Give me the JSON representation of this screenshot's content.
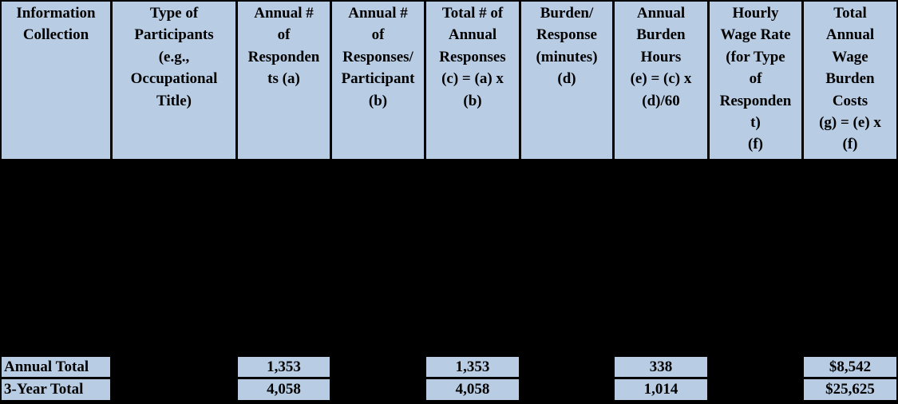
{
  "table": {
    "title_semantic": "Estimated Annualized Burden Table",
    "headers": [
      "Information\nCollection",
      "Type of\nParticipants\n(e.g.,\nOccupational\nTitle)",
      "Annual #\nof\nResponden\nts (a)",
      "Annual #\nof\nResponses/\nParticipant\n(b)",
      "Total # of\nAnnual\nResponses\n(c) = (a) x\n(b)",
      "Burden/\nResponse\n(minutes)\n(d)",
      "Annual\nBurden\nHours\n(e) = (c) x\n(d)/60",
      "Hourly\nWage Rate\n(for Type\nof\nResponden\nt)\n(f)",
      "Total\nAnnual\nWage\nBurden\nCosts\n(g) = (e) x\n(f)"
    ],
    "rows": [
      {
        "label": "Annual Total",
        "annual_respondents": "1,353",
        "total_annual_responses": "1,353",
        "annual_burden_hours": "338",
        "total_annual_wage_burden_costs": "$8,542"
      },
      {
        "label": "3-Year Total",
        "annual_respondents": "4,058",
        "total_annual_responses": "4,058",
        "annual_burden_hours": "1,014",
        "total_annual_wage_burden_costs": "$25,625"
      }
    ],
    "colors": {
      "cell_background": "#B8CCE4",
      "table_background": "#000000",
      "text": "#000000"
    }
  }
}
